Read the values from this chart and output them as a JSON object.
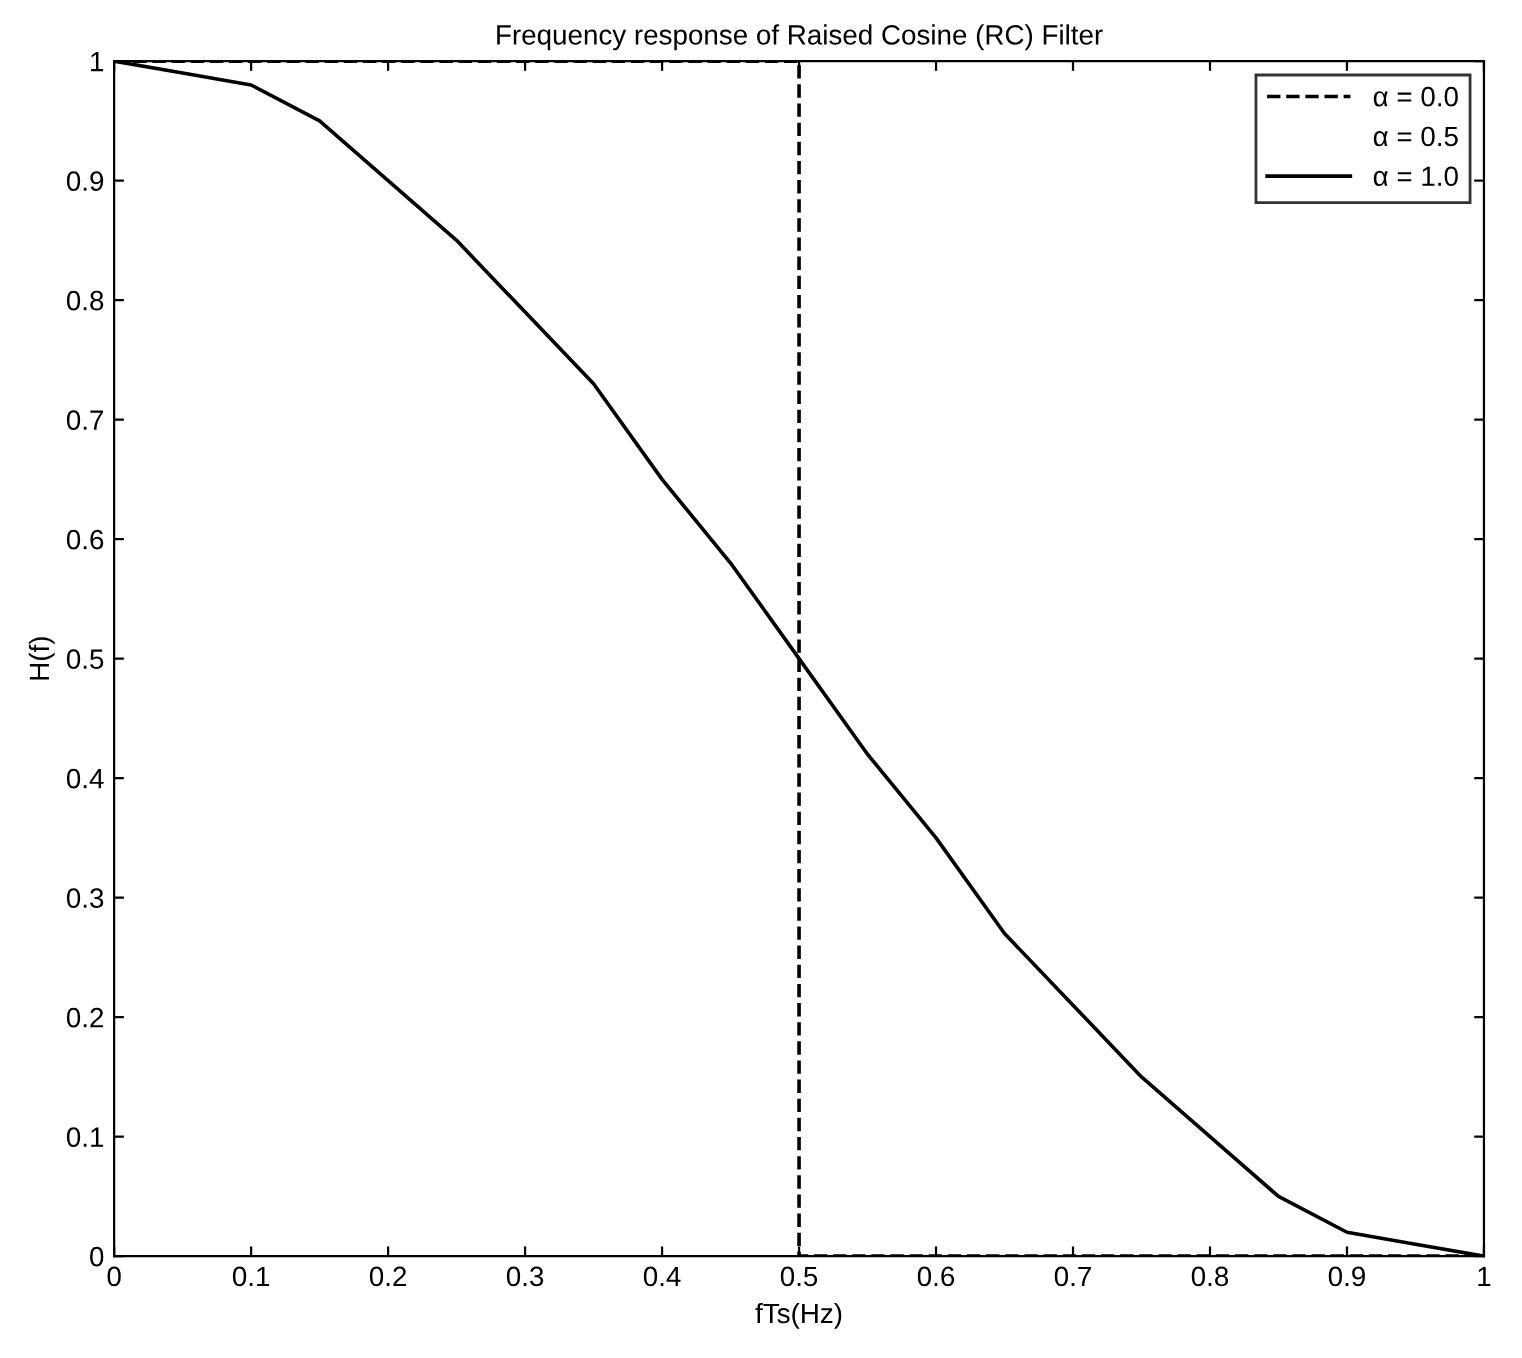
{
  "chart_data": {
    "type": "line",
    "title": "Frequency response of Raised Cosine (RC) Filter",
    "xlabel": "fTs(Hz)",
    "ylabel": "H(f)",
    "series": [
      {
        "name": "α = 0.0",
        "color": "#000000",
        "line_style": "dashed",
        "x": [
          0,
          0.5,
          0.5,
          1
        ],
        "values": [
          1,
          1,
          0,
          0
        ]
      },
      {
        "name": "α = 0.5"
      },
      {
        "name": "α = 1.0",
        "color": "#000000",
        "line_style": "solid",
        "x": [
          0,
          0.05,
          0.1,
          0.15,
          0.2,
          0.25,
          0.3,
          0.35,
          0.4,
          0.45,
          0.5,
          0.55,
          0.6,
          0.65,
          0.7,
          0.75,
          0.8,
          0.85,
          0.9,
          0.95,
          1.0
        ],
        "values": [
          1,
          0.99,
          0.98,
          0.95,
          0.9,
          0.85,
          0.79,
          0.73,
          0.65,
          0.58,
          0.5,
          0.42,
          0.35,
          0.27,
          0.21,
          0.15,
          0.1,
          0.05,
          0.02,
          0.01,
          0
        ]
      }
    ],
    "xlim": [
      0,
      1
    ],
    "xticks": [
      0,
      0.1,
      0.2,
      0.3,
      0.4,
      0.5,
      0.6,
      0.7,
      0.8,
      0.9,
      1
    ],
    "ylim": [
      0,
      1
    ],
    "yticks": [
      0,
      0.1,
      0.2,
      0.3,
      0.4,
      0.5,
      0.6,
      0.7,
      0.8,
      0.9,
      1
    ],
    "grid": false,
    "legend": "top right",
    "marker": "none"
  }
}
